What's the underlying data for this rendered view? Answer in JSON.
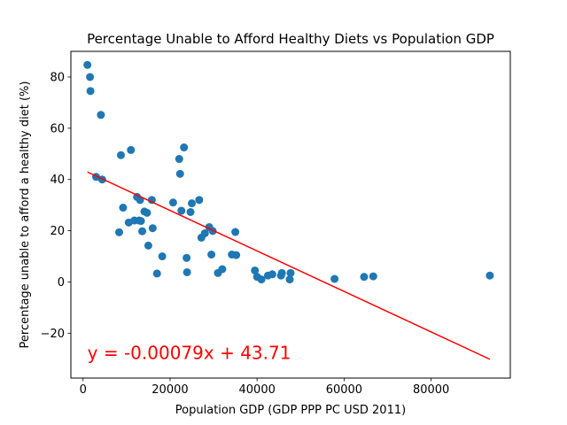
{
  "chart_data": {
    "type": "scatter",
    "title": "Percentage Unable to Afford Healthy Diets vs Population GDP",
    "xlabel": "Population GDP (GDP PPP PC USD 2011)",
    "ylabel": "Percentage unable to afford a healthy diet (%)",
    "xlim": [
      -2800,
      98200
    ],
    "ylim": [
      -37.5,
      90
    ],
    "xticks": [
      0,
      20000,
      40000,
      60000,
      80000
    ],
    "yticks": [
      -20,
      0,
      20,
      40,
      60,
      80
    ],
    "grid": false,
    "points": [
      [
        1000,
        84.7
      ],
      [
        1600,
        80.0
      ],
      [
        1700,
        74.5
      ],
      [
        3000,
        41.0
      ],
      [
        4100,
        65.2
      ],
      [
        4400,
        40.0
      ],
      [
        8300,
        19.4
      ],
      [
        8700,
        49.5
      ],
      [
        9200,
        29.0
      ],
      [
        10500,
        23.2
      ],
      [
        11000,
        51.5
      ],
      [
        11800,
        24.0
      ],
      [
        12400,
        33.2
      ],
      [
        12900,
        24.0
      ],
      [
        13100,
        32.0
      ],
      [
        13300,
        23.8
      ],
      [
        13600,
        19.8
      ],
      [
        14100,
        27.5
      ],
      [
        14700,
        27.0
      ],
      [
        15000,
        14.2
      ],
      [
        15800,
        32.0
      ],
      [
        16000,
        21.0
      ],
      [
        17000,
        3.3
      ],
      [
        18200,
        10.0
      ],
      [
        20700,
        31.0
      ],
      [
        22100,
        48.0
      ],
      [
        22300,
        42.2
      ],
      [
        22600,
        27.8
      ],
      [
        23200,
        52.5
      ],
      [
        23800,
        9.4
      ],
      [
        23900,
        3.8
      ],
      [
        24700,
        27.3
      ],
      [
        25000,
        30.7
      ],
      [
        26700,
        32.0
      ],
      [
        27200,
        17.3
      ],
      [
        28000,
        19.0
      ],
      [
        29000,
        21.4
      ],
      [
        29500,
        10.7
      ],
      [
        29800,
        19.9
      ],
      [
        31000,
        3.5
      ],
      [
        32000,
        5.0
      ],
      [
        34200,
        10.7
      ],
      [
        35000,
        19.5
      ],
      [
        35200,
        10.5
      ],
      [
        39500,
        4.5
      ],
      [
        40000,
        2.0
      ],
      [
        41000,
        1.0
      ],
      [
        42500,
        2.5
      ],
      [
        43500,
        3.0
      ],
      [
        45500,
        2.5
      ],
      [
        45700,
        3.5
      ],
      [
        47500,
        1.0
      ],
      [
        47700,
        3.5
      ],
      [
        57800,
        1.2
      ],
      [
        64600,
        2.0
      ],
      [
        66700,
        2.2
      ],
      [
        93500,
        2.5
      ]
    ],
    "regression": {
      "slope": -0.00079,
      "intercept": 43.71,
      "x_range": [
        1000,
        93500
      ]
    },
    "annotation": {
      "text": "y = -0.00079x + 43.71",
      "x": 1000,
      "y": -30,
      "color": "#ff0000"
    },
    "colors": {
      "points": "#1f77b4",
      "line": "#ff0000",
      "axes": "#000000"
    }
  }
}
